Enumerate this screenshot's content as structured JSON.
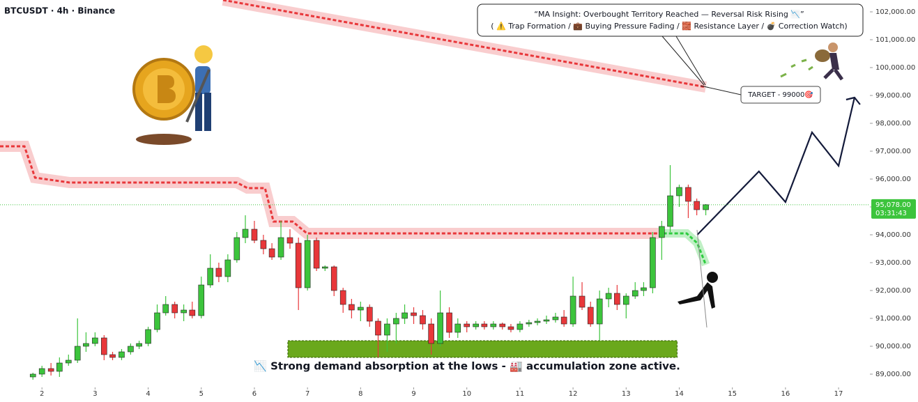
{
  "chart_data": {
    "type": "candlestick",
    "title": "BTCUSDT · 4h · Binance",
    "ylim": [
      88550,
      102425
    ],
    "xlim": [
      1.21,
      17.59
    ],
    "yticks": [
      {
        "value": 89000,
        "label": "89,000.00"
      },
      {
        "value": 90000,
        "label": "90,000.00"
      },
      {
        "value": 91000,
        "label": "91,000.00"
      },
      {
        "value": 92000,
        "label": "92,000.00"
      },
      {
        "value": 93000,
        "label": "93,000.00"
      },
      {
        "value": 94000,
        "label": "94,000.00"
      },
      {
        "value": 95000,
        "label": "95,000.00"
      },
      {
        "value": 96000,
        "label": "96,000.00"
      },
      {
        "value": 97000,
        "label": "97,000.00"
      },
      {
        "value": 98000,
        "label": "98,000.00"
      },
      {
        "value": 99000,
        "label": "99,000.00"
      },
      {
        "value": 100000,
        "label": "100,000.00"
      },
      {
        "value": 101000,
        "label": "101,000.00"
      },
      {
        "value": 102000,
        "label": "102,000.00"
      }
    ],
    "xticks": [
      2,
      3,
      4,
      5,
      6,
      7,
      8,
      9,
      10,
      11,
      12,
      13,
      14,
      15,
      16,
      17
    ],
    "up_color": "#3cc43c",
    "down_color": "#e8373a",
    "candles": [
      {
        "x": 1.83,
        "open": 88900,
        "high": 89050,
        "low": 88800,
        "close": 89000
      },
      {
        "x": 2.0,
        "open": 89000,
        "high": 89300,
        "low": 88900,
        "close": 89200
      },
      {
        "x": 2.17,
        "open": 89200,
        "high": 89400,
        "low": 88950,
        "close": 89100
      },
      {
        "x": 2.33,
        "open": 89100,
        "high": 89600,
        "low": 88900,
        "close": 89400
      },
      {
        "x": 2.5,
        "open": 89400,
        "high": 89700,
        "low": 89300,
        "close": 89500
      },
      {
        "x": 2.67,
        "open": 89500,
        "high": 91000,
        "low": 89400,
        "close": 90000
      },
      {
        "x": 2.83,
        "open": 90000,
        "high": 90500,
        "low": 89800,
        "close": 90100
      },
      {
        "x": 3.0,
        "open": 90100,
        "high": 90500,
        "low": 90000,
        "close": 90300
      },
      {
        "x": 3.17,
        "open": 90300,
        "high": 90400,
        "low": 89500,
        "close": 89700
      },
      {
        "x": 3.33,
        "open": 89700,
        "high": 89800,
        "low": 89500,
        "close": 89600
      },
      {
        "x": 3.5,
        "open": 89600,
        "high": 89900,
        "low": 89500,
        "close": 89800
      },
      {
        "x": 3.67,
        "open": 89800,
        "high": 90100,
        "low": 89700,
        "close": 90000
      },
      {
        "x": 3.83,
        "open": 90000,
        "high": 90200,
        "low": 89900,
        "close": 90100
      },
      {
        "x": 4.0,
        "open": 90100,
        "high": 90700,
        "low": 90000,
        "close": 90600
      },
      {
        "x": 4.17,
        "open": 90600,
        "high": 91500,
        "low": 90500,
        "close": 91200
      },
      {
        "x": 4.33,
        "open": 91200,
        "high": 91800,
        "low": 91100,
        "close": 91500
      },
      {
        "x": 4.5,
        "open": 91500,
        "high": 91600,
        "low": 91000,
        "close": 91200
      },
      {
        "x": 4.67,
        "open": 91200,
        "high": 91500,
        "low": 90900,
        "close": 91300
      },
      {
        "x": 4.83,
        "open": 91300,
        "high": 91600,
        "low": 91000,
        "close": 91100
      },
      {
        "x": 5.0,
        "open": 91100,
        "high": 92500,
        "low": 91000,
        "close": 92200
      },
      {
        "x": 5.17,
        "open": 92200,
        "high": 93300,
        "low": 92100,
        "close": 92800
      },
      {
        "x": 5.33,
        "open": 92800,
        "high": 93000,
        "low": 92300,
        "close": 92500
      },
      {
        "x": 5.5,
        "open": 92500,
        "high": 93300,
        "low": 92300,
        "close": 93100
      },
      {
        "x": 5.67,
        "open": 93100,
        "high": 94100,
        "low": 93000,
        "close": 93900
      },
      {
        "x": 5.83,
        "open": 93900,
        "high": 94700,
        "low": 93700,
        "close": 94200
      },
      {
        "x": 6.0,
        "open": 94200,
        "high": 94500,
        "low": 93700,
        "close": 93800
      },
      {
        "x": 6.17,
        "open": 93800,
        "high": 94000,
        "low": 93300,
        "close": 93500
      },
      {
        "x": 6.33,
        "open": 93500,
        "high": 93700,
        "low": 93100,
        "close": 93200
      },
      {
        "x": 6.5,
        "open": 93200,
        "high": 94500,
        "low": 93100,
        "close": 93900
      },
      {
        "x": 6.67,
        "open": 93900,
        "high": 94200,
        "low": 93500,
        "close": 93700
      },
      {
        "x": 6.83,
        "open": 93700,
        "high": 93900,
        "low": 91300,
        "close": 92100
      },
      {
        "x": 7.0,
        "open": 92100,
        "high": 94000,
        "low": 92000,
        "close": 93800
      },
      {
        "x": 7.17,
        "open": 93800,
        "high": 93900,
        "low": 92700,
        "close": 92800
      },
      {
        "x": 7.33,
        "open": 92800,
        "high": 92900,
        "low": 92700,
        "close": 92850
      },
      {
        "x": 7.5,
        "open": 92850,
        "high": 92900,
        "low": 91800,
        "close": 92000
      },
      {
        "x": 7.67,
        "open": 92000,
        "high": 92100,
        "low": 91200,
        "close": 91500
      },
      {
        "x": 7.83,
        "open": 91500,
        "high": 91700,
        "low": 91000,
        "close": 91300
      },
      {
        "x": 8.0,
        "open": 91300,
        "high": 91600,
        "low": 90900,
        "close": 91400
      },
      {
        "x": 8.17,
        "open": 91400,
        "high": 91500,
        "low": 90700,
        "close": 90900
      },
      {
        "x": 8.33,
        "open": 90900,
        "high": 91000,
        "low": 89600,
        "close": 90400
      },
      {
        "x": 8.5,
        "open": 90400,
        "high": 91000,
        "low": 89800,
        "close": 90800
      },
      {
        "x": 8.67,
        "open": 90800,
        "high": 91200,
        "low": 90100,
        "close": 91000
      },
      {
        "x": 8.83,
        "open": 91000,
        "high": 91500,
        "low": 90800,
        "close": 91200
      },
      {
        "x": 9.0,
        "open": 91200,
        "high": 91400,
        "low": 90800,
        "close": 91100
      },
      {
        "x": 9.17,
        "open": 91100,
        "high": 91300,
        "low": 90600,
        "close": 90800
      },
      {
        "x": 9.33,
        "open": 90800,
        "high": 91000,
        "low": 89700,
        "close": 90100
      },
      {
        "x": 9.5,
        "open": 90100,
        "high": 92000,
        "low": 90000,
        "close": 91200
      },
      {
        "x": 9.67,
        "open": 91200,
        "high": 91400,
        "low": 90300,
        "close": 90500
      },
      {
        "x": 9.83,
        "open": 90500,
        "high": 91000,
        "low": 90300,
        "close": 90800
      },
      {
        "x": 10.0,
        "open": 90800,
        "high": 90900,
        "low": 90500,
        "close": 90700
      },
      {
        "x": 10.17,
        "open": 90700,
        "high": 90900,
        "low": 90600,
        "close": 90800
      },
      {
        "x": 10.33,
        "open": 90800,
        "high": 90900,
        "low": 90600,
        "close": 90700
      },
      {
        "x": 10.5,
        "open": 90700,
        "high": 90900,
        "low": 90600,
        "close": 90800
      },
      {
        "x": 10.67,
        "open": 90800,
        "high": 90850,
        "low": 90600,
        "close": 90700
      },
      {
        "x": 10.83,
        "open": 90700,
        "high": 90800,
        "low": 90500,
        "close": 90600
      },
      {
        "x": 11.0,
        "open": 90600,
        "high": 90900,
        "low": 90500,
        "close": 90800
      },
      {
        "x": 11.17,
        "open": 90800,
        "high": 90950,
        "low": 90700,
        "close": 90850
      },
      {
        "x": 11.33,
        "open": 90850,
        "high": 91000,
        "low": 90750,
        "close": 90900
      },
      {
        "x": 11.5,
        "open": 90900,
        "high": 91100,
        "low": 90800,
        "close": 90950
      },
      {
        "x": 11.67,
        "open": 90950,
        "high": 91200,
        "low": 90850,
        "close": 91050
      },
      {
        "x": 11.83,
        "open": 91050,
        "high": 91300,
        "low": 90700,
        "close": 90800
      },
      {
        "x": 12.0,
        "open": 90800,
        "high": 92500,
        "low": 90700,
        "close": 91800
      },
      {
        "x": 12.17,
        "open": 91800,
        "high": 92300,
        "low": 91300,
        "close": 91400
      },
      {
        "x": 12.33,
        "open": 91400,
        "high": 91600,
        "low": 90700,
        "close": 90800
      },
      {
        "x": 12.5,
        "open": 90800,
        "high": 92000,
        "low": 90200,
        "close": 91700
      },
      {
        "x": 12.67,
        "open": 91700,
        "high": 92100,
        "low": 91400,
        "close": 91900
      },
      {
        "x": 12.83,
        "open": 91900,
        "high": 92200,
        "low": 91300,
        "close": 91500
      },
      {
        "x": 13.0,
        "open": 91500,
        "high": 91900,
        "low": 91000,
        "close": 91800
      },
      {
        "x": 13.17,
        "open": 91800,
        "high": 92300,
        "low": 91700,
        "close": 92000
      },
      {
        "x": 13.33,
        "open": 92000,
        "high": 92300,
        "low": 91800,
        "close": 92100
      },
      {
        "x": 13.5,
        "open": 92100,
        "high": 94100,
        "low": 91900,
        "close": 93900
      },
      {
        "x": 13.67,
        "open": 93900,
        "high": 94500,
        "low": 93100,
        "close": 94300
      },
      {
        "x": 13.83,
        "open": 94300,
        "high": 96500,
        "low": 94100,
        "close": 95400
      },
      {
        "x": 14.0,
        "open": 95400,
        "high": 95800,
        "low": 95000,
        "close": 95700
      },
      {
        "x": 14.17,
        "open": 95700,
        "high": 95800,
        "low": 94600,
        "close": 95200
      },
      {
        "x": 14.33,
        "open": 95200,
        "high": 95300,
        "low": 94700,
        "close": 94900
      },
      {
        "x": 14.5,
        "open": 94900,
        "high": 95100,
        "low": 94700,
        "close": 95078
      }
    ],
    "series": [
      {
        "style": "band",
        "color": "#e8373a",
        "x": [
          1.21,
          1.67,
          1.87,
          2.52,
          5.67,
          5.87,
          6.2,
          6.36,
          6.72,
          6.99,
          13.61
        ],
        "values": [
          97175,
          97175,
          96050,
          95875,
          95875,
          95675,
          95675,
          94475,
          94475,
          94050,
          94050
        ]
      },
      {
        "style": "band",
        "color": "#e8373a",
        "x": [
          5.41,
          14.5
        ],
        "values": [
          102425,
          99300
        ]
      },
      {
        "style": "projection",
        "color": "#2ecc40",
        "x": [
          13.7,
          14.14,
          14.34,
          14.5
        ],
        "values": [
          94050,
          94050,
          93700,
          92925
        ]
      },
      {
        "style": "path",
        "color": "#131a3a",
        "x": [
          14.34,
          15.5,
          16.0,
          16.5,
          17.0,
          17.3
        ],
        "values": [
          94000,
          96275,
          95175,
          97675,
          96475,
          98925
        ]
      }
    ],
    "last_price": {
      "value": 95078,
      "label": "95,078.00"
    },
    "countdown": "03:31:43",
    "callout": [
      "“MA Insight: Overbought Territory Reached — Reversal Risk Rising 📉”",
      "( ⚠️ Trap Formation / 💼 Buying Pressure Fading / 🧱 Resistance Layer / 💣 Correction Watch)"
    ],
    "target": "TARGET - 99000🎯",
    "zone": {
      "text": "📉 Strong demand absorption at the lows - 🏭 accumulation zone active.",
      "x": [
        6.63,
        13.96
      ],
      "y": [
        89600,
        90200
      ]
    }
  }
}
